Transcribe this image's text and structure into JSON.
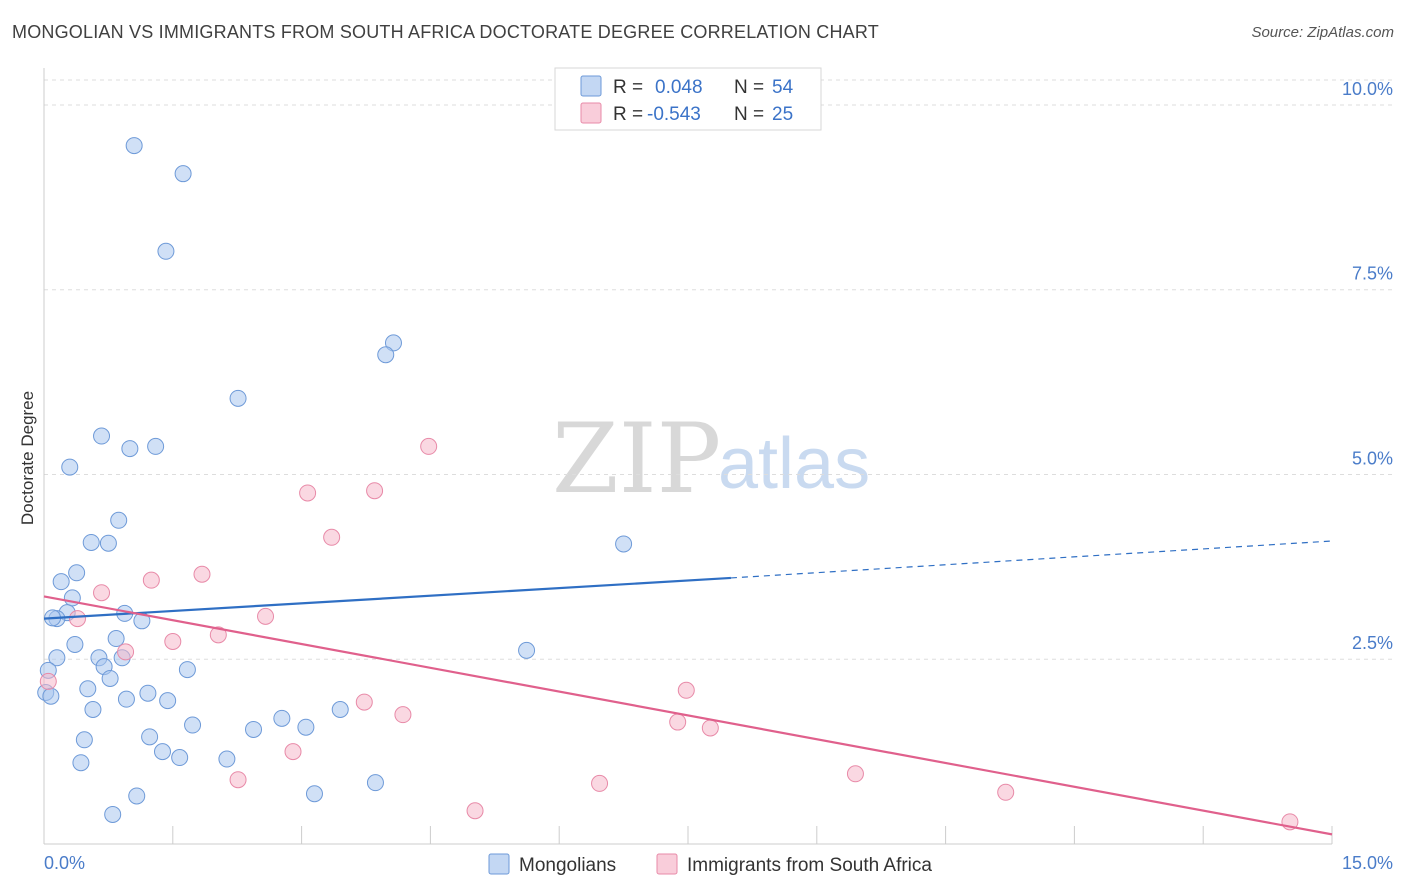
{
  "header": {
    "title": "MONGOLIAN VS IMMIGRANTS FROM SOUTH AFRICA DOCTORATE DEGREE CORRELATION CHART",
    "source": "Source: ZipAtlas.com"
  },
  "watermark": {
    "zip": "ZIP",
    "atlas": "atlas"
  },
  "legend": {
    "rows": [
      {
        "r_label": "R = ",
        "r_value": "0.048",
        "n_label": "N = ",
        "n_value": "54",
        "color": "#a9c6ee"
      },
      {
        "r_label": "R = ",
        "r_value": "-0.543",
        "n_label": "N = ",
        "n_value": "25",
        "color": "#f6b8cb"
      }
    ]
  },
  "chart_data": {
    "type": "scatter",
    "title": "MONGOLIAN VS IMMIGRANTS FROM SOUTH AFRICA DOCTORATE DEGREE CORRELATION CHART",
    "xlabel": "",
    "ylabel": "Doctorate Degree",
    "xlim": [
      0,
      15
    ],
    "ylim": [
      0,
      10.5
    ],
    "x_tick_labels": {
      "min": "0.0%",
      "max": "15.0%"
    },
    "y_ticks": [
      {
        "value": 2.5,
        "label": "2.5%"
      },
      {
        "value": 5.0,
        "label": "5.0%"
      },
      {
        "value": 7.5,
        "label": "7.5%"
      },
      {
        "value": 10.0,
        "label": "10.0%"
      }
    ],
    "grid": true,
    "legend_position": "top-center",
    "series": [
      {
        "name": "Mongolians",
        "fill": "#a9c6ee",
        "stroke": "#6e9ad8",
        "line_color": "#2f6fc4",
        "trend": {
          "x0": 0.0,
          "y0": 3.05,
          "x1": 8.0,
          "y1": 3.6,
          "x_dash_end": 15.0,
          "y_dash_end": 4.1
        },
        "points": [
          [
            1.05,
            9.45
          ],
          [
            1.62,
            9.07
          ],
          [
            1.42,
            8.02
          ],
          [
            4.07,
            6.78
          ],
          [
            3.98,
            6.62
          ],
          [
            2.26,
            6.03
          ],
          [
            0.67,
            5.52
          ],
          [
            1.0,
            5.35
          ],
          [
            1.3,
            5.38
          ],
          [
            0.3,
            5.1
          ],
          [
            0.87,
            4.38
          ],
          [
            0.55,
            4.08
          ],
          [
            0.75,
            4.07
          ],
          [
            0.38,
            3.67
          ],
          [
            0.2,
            3.55
          ],
          [
            0.33,
            3.33
          ],
          [
            0.27,
            3.13
          ],
          [
            0.15,
            3.05
          ],
          [
            0.1,
            3.06
          ],
          [
            0.94,
            3.12
          ],
          [
            1.14,
            3.02
          ],
          [
            0.36,
            2.7
          ],
          [
            0.84,
            2.78
          ],
          [
            0.15,
            2.52
          ],
          [
            0.64,
            2.52
          ],
          [
            0.91,
            2.52
          ],
          [
            0.7,
            2.4
          ],
          [
            0.05,
            2.35
          ],
          [
            0.77,
            2.24
          ],
          [
            1.67,
            2.36
          ],
          [
            0.51,
            2.1
          ],
          [
            1.21,
            2.04
          ],
          [
            0.96,
            1.96
          ],
          [
            1.44,
            1.94
          ],
          [
            0.57,
            1.82
          ],
          [
            3.45,
            1.82
          ],
          [
            2.77,
            1.7
          ],
          [
            1.73,
            1.61
          ],
          [
            2.44,
            1.55
          ],
          [
            3.05,
            1.58
          ],
          [
            0.47,
            1.41
          ],
          [
            1.23,
            1.45
          ],
          [
            1.38,
            1.25
          ],
          [
            1.58,
            1.17
          ],
          [
            2.13,
            1.15
          ],
          [
            0.43,
            1.1
          ],
          [
            0.02,
            2.05
          ],
          [
            3.86,
            0.83
          ],
          [
            1.08,
            0.65
          ],
          [
            3.15,
            0.68
          ],
          [
            0.8,
            0.4
          ],
          [
            5.62,
            2.62
          ],
          [
            6.75,
            4.06
          ],
          [
            0.08,
            2.0
          ]
        ]
      },
      {
        "name": "Immigrants from South Africa",
        "fill": "#f6b8cb",
        "stroke": "#e88aa8",
        "line_color": "#e0608c",
        "trend": {
          "x0": 0.0,
          "y0": 3.35,
          "x1": 15.0,
          "y1": 0.13
        },
        "points": [
          [
            4.48,
            5.38
          ],
          [
            3.85,
            4.78
          ],
          [
            3.07,
            4.75
          ],
          [
            3.35,
            4.15
          ],
          [
            1.84,
            3.65
          ],
          [
            1.25,
            3.57
          ],
          [
            0.67,
            3.4
          ],
          [
            0.39,
            3.05
          ],
          [
            2.58,
            3.08
          ],
          [
            2.03,
            2.83
          ],
          [
            1.5,
            2.74
          ],
          [
            0.95,
            2.6
          ],
          [
            0.05,
            2.2
          ],
          [
            7.48,
            2.08
          ],
          [
            3.73,
            1.92
          ],
          [
            4.18,
            1.75
          ],
          [
            7.38,
            1.65
          ],
          [
            7.76,
            1.57
          ],
          [
            2.9,
            1.25
          ],
          [
            2.26,
            0.87
          ],
          [
            9.45,
            0.95
          ],
          [
            6.47,
            0.82
          ],
          [
            11.2,
            0.7
          ],
          [
            5.02,
            0.45
          ],
          [
            14.51,
            0.3
          ]
        ]
      }
    ]
  }
}
